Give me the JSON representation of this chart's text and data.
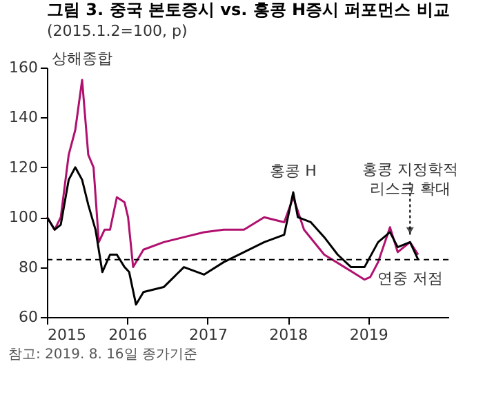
{
  "chart_data": {
    "type": "line",
    "title": "그림 3. 중국 본토증시 vs. 홍콩 H증시 퍼포먼스 비교",
    "subtitle": "(2015.1.2=100, p)",
    "xlim": [
      "2015-01-01",
      "2020-01-01"
    ],
    "xticks": [
      "2015",
      "2016",
      "2017",
      "2018",
      "2019"
    ],
    "ylim": [
      60,
      160
    ],
    "yticks": [
      60,
      80,
      100,
      120,
      140,
      160
    ],
    "grid": false,
    "legend": false,
    "series": [
      {
        "name": "상해종합",
        "color": "#b0106e",
        "x": [
          "2015-01-02",
          "2015-02-05",
          "2015-03-05",
          "2015-04-10",
          "2015-05-10",
          "2015-06-10",
          "2015-07-08",
          "2015-08-01",
          "2015-08-25",
          "2015-09-20",
          "2015-10-15",
          "2015-11-15",
          "2015-12-20",
          "2016-01-05",
          "2016-01-28",
          "2016-03-15",
          "2016-06-15",
          "2016-09-15",
          "2016-12-15",
          "2017-03-15",
          "2017-06-15",
          "2017-09-15",
          "2017-12-15",
          "2018-01-25",
          "2018-03-15",
          "2018-06-15",
          "2018-09-15",
          "2018-12-15",
          "2019-01-10",
          "2019-02-15",
          "2019-04-10",
          "2019-05-15",
          "2019-07-10",
          "2019-08-16"
        ],
        "values": [
          100,
          95,
          100,
          125,
          135,
          155,
          125,
          120,
          90,
          95,
          95,
          108,
          106,
          100,
          80,
          87,
          90,
          92,
          94,
          95,
          95,
          100,
          98,
          108,
          95,
          85,
          80,
          75,
          76,
          82,
          96,
          86,
          90,
          85
        ]
      },
      {
        "name": "홍콩 H",
        "color": "#000000",
        "x": [
          "2015-01-02",
          "2015-02-05",
          "2015-03-05",
          "2015-04-10",
          "2015-05-10",
          "2015-06-10",
          "2015-07-08",
          "2015-08-10",
          "2015-09-10",
          "2015-10-15",
          "2015-11-15",
          "2015-12-20",
          "2016-01-10",
          "2016-02-10",
          "2016-03-15",
          "2016-06-15",
          "2016-09-15",
          "2016-12-15",
          "2017-03-15",
          "2017-06-15",
          "2017-09-15",
          "2017-12-15",
          "2018-01-25",
          "2018-02-15",
          "2018-04-15",
          "2018-06-15",
          "2018-08-15",
          "2018-10-15",
          "2018-12-15",
          "2019-02-15",
          "2019-04-10",
          "2019-05-15",
          "2019-07-10",
          "2019-08-16"
        ],
        "values": [
          100,
          95,
          97,
          115,
          120,
          115,
          105,
          95,
          78,
          85,
          85,
          80,
          78,
          65,
          70,
          72,
          80,
          77,
          82,
          86,
          90,
          93,
          110,
          100,
          98,
          92,
          85,
          80,
          80,
          90,
          94,
          88,
          90,
          83
        ]
      }
    ],
    "ref_lines": [
      {
        "axis": "y",
        "value": 83,
        "label": "연중 저점",
        "line_style": "dashed",
        "color": "#000000"
      }
    ],
    "annotations": [
      {
        "text": "홍콩 지정학적 리스크 확대",
        "x": "2019-07-10",
        "y": 93
      },
      "참고: 2019. 8. 16일 종가기준"
    ]
  }
}
